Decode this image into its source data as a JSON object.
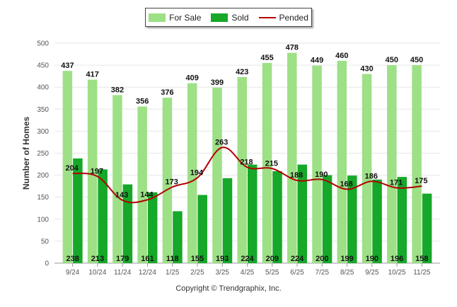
{
  "colors": {
    "for_sale": "#9de086",
    "sold": "#16a829",
    "pended": "#b20000",
    "grid": "#e6e6e6",
    "axis_text": "#555555"
  },
  "legend": {
    "for_sale_label": "For Sale",
    "sold_label": "Sold",
    "pended_label": "Pended"
  },
  "copyright": "Copyright © Trendgraphix, Inc.",
  "chart_data": {
    "type": "bar",
    "title": "",
    "xlabel": "",
    "ylabel": "Number of Homes",
    "ylim": [
      0,
      500
    ],
    "yticks": [
      0,
      50,
      100,
      150,
      200,
      250,
      300,
      350,
      400,
      450,
      500
    ],
    "categories": [
      "9/24",
      "10/24",
      "11/24",
      "12/24",
      "1/25",
      "2/25",
      "3/25",
      "4/25",
      "5/25",
      "6/25",
      "7/25",
      "8/25",
      "9/25",
      "10/25",
      "11/25"
    ],
    "series": [
      {
        "name": "For Sale",
        "kind": "bar",
        "values": [
          437,
          417,
          382,
          356,
          376,
          409,
          399,
          423,
          455,
          478,
          449,
          460,
          430,
          450,
          450
        ]
      },
      {
        "name": "Sold",
        "kind": "bar",
        "values": [
          238,
          213,
          179,
          161,
          118,
          155,
          193,
          224,
          209,
          224,
          200,
          199,
          190,
          196,
          158
        ]
      },
      {
        "name": "Pended",
        "kind": "line",
        "values": [
          204,
          197,
          143,
          144,
          173,
          194,
          263,
          218,
          215,
          188,
          190,
          168,
          186,
          171,
          175
        ]
      }
    ]
  }
}
